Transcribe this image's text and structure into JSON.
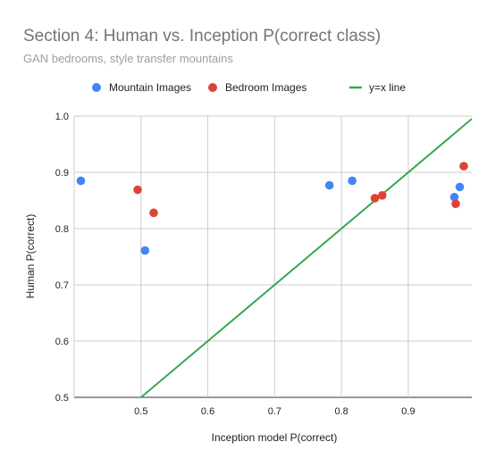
{
  "chart_data": {
    "type": "scatter",
    "title": "Section 4: Human vs. Inception P(correct class)",
    "subtitle": "GAN bedrooms, style transfer mountains",
    "xlabel": "Inception model P(correct)",
    "ylabel": "Human P(correct)",
    "xlim": [
      0.4,
      0.995
    ],
    "ylim": [
      0.5,
      1.0
    ],
    "x_ticks": [
      0.5,
      0.6,
      0.7,
      0.8,
      0.9
    ],
    "y_ticks": [
      0.5,
      0.6,
      0.7,
      0.8,
      0.9,
      1.0
    ],
    "x_tick_labels": [
      "0.5",
      "0.6",
      "0.7",
      "0.8",
      "0.9"
    ],
    "y_tick_labels": [
      "0.5",
      "0.6",
      "0.7",
      "0.8",
      "0.9",
      "1.0"
    ],
    "grid": true,
    "legend_position": "top",
    "series": [
      {
        "name": "Mountain Images",
        "color": "#4285f4",
        "points": [
          {
            "x": 0.41,
            "y": 0.885
          },
          {
            "x": 0.506,
            "y": 0.761
          },
          {
            "x": 0.782,
            "y": 0.877
          },
          {
            "x": 0.816,
            "y": 0.885
          },
          {
            "x": 0.969,
            "y": 0.856
          },
          {
            "x": 0.977,
            "y": 0.874
          }
        ]
      },
      {
        "name": "Bedroom Images",
        "color": "#db4437",
        "points": [
          {
            "x": 0.495,
            "y": 0.869
          },
          {
            "x": 0.519,
            "y": 0.828
          },
          {
            "x": 0.85,
            "y": 0.854
          },
          {
            "x": 0.861,
            "y": 0.859
          },
          {
            "x": 0.971,
            "y": 0.844
          },
          {
            "x": 0.983,
            "y": 0.911
          }
        ]
      }
    ],
    "reference_line": {
      "name": "y=x line",
      "color": "#34a853",
      "x": [
        0.5,
        0.995
      ],
      "y": [
        0.5,
        0.995
      ]
    }
  }
}
